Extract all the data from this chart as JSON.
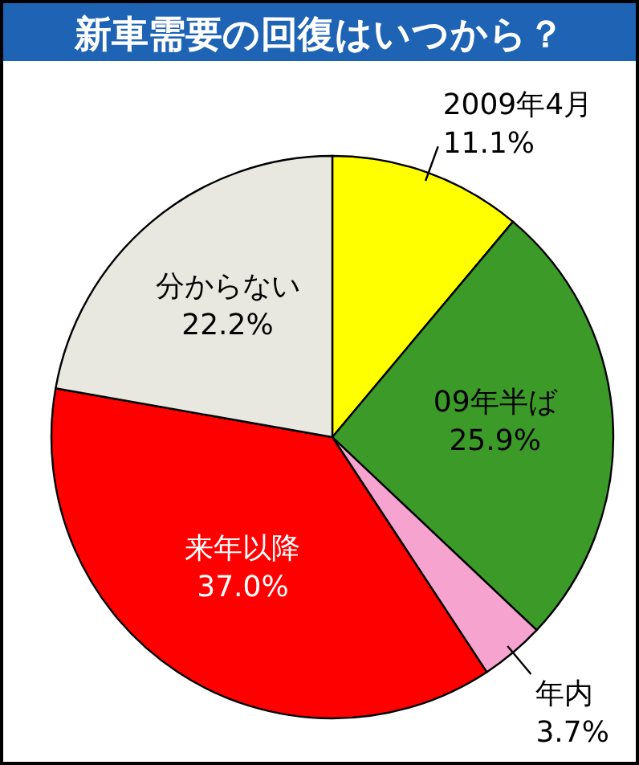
{
  "chart_data": {
    "type": "pie",
    "title": "新車需要の回復はいつから？",
    "categories": [
      "2009年4月",
      "09年半ば",
      "年内",
      "来年以降",
      "分からない"
    ],
    "values": [
      11.1,
      25.9,
      3.7,
      37.0,
      22.2
    ],
    "colors": [
      "#ffff00",
      "#3c9a28",
      "#f7a3cf",
      "#ff0000",
      "#e9e8e0"
    ],
    "value_labels": [
      "11.1%",
      "25.9%",
      "3.7%",
      "37.0%",
      "22.2%"
    ]
  }
}
